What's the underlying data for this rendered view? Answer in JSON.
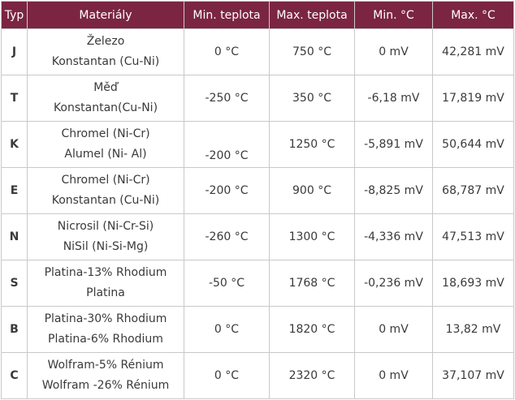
{
  "table": {
    "headers": [
      "Typ",
      "Materiály",
      "Min. teplota",
      "Max. teplota",
      "Min. °C",
      "Max. °C"
    ],
    "rows": [
      {
        "typ": "J",
        "material": [
          "Železo",
          "Konstantan (Cu-Ni)"
        ],
        "min_teplota": "0 °C",
        "max_teplota": "750 °C",
        "min_c": "0 mV",
        "max_c": "42,281 mV"
      },
      {
        "typ": "T",
        "material": [
          "Měď",
          "Konstantan(Cu-Ni)"
        ],
        "min_teplota": "-250 °C",
        "max_teplota": "350 °C",
        "min_c": "-6,18 mV",
        "max_c": "17,819 mV"
      },
      {
        "typ": "K",
        "material": [
          "Chromel (Ni-Cr)",
          "Alumel (Ni- Al)"
        ],
        "min_teplota": "-200 °C",
        "max_teplota": "1250 °C",
        "min_c": "-5,891 mV",
        "max_c": "50,644 mV"
      },
      {
        "typ": "E",
        "material": [
          "Chromel (Ni-Cr)",
          "Konstantan (Cu-Ni)"
        ],
        "min_teplota": "-200 °C",
        "max_teplota": "900 °C",
        "min_c": "-8,825 mV",
        "max_c": "68,787 mV"
      },
      {
        "typ": "N",
        "material": [
          "Nicrosil (Ni-Cr-Si)",
          "NiSil (Ni-Si-Mg)"
        ],
        "min_teplota": "-260 °C",
        "max_teplota": "1300 °C",
        "min_c": "-4,336 mV",
        "max_c": "47,513 mV"
      },
      {
        "typ": "S",
        "material": [
          "Platina-13% Rhodium",
          "Platina"
        ],
        "min_teplota": "-50 °C",
        "max_teplota": "1768 °C",
        "min_c": "-0,236 mV",
        "max_c": "18,693 mV"
      },
      {
        "typ": "B",
        "material": [
          "Platina-30% Rhodium",
          "Platina-6% Rhodium"
        ],
        "min_teplota": "0 °C",
        "max_teplota": "1820 °C",
        "min_c": "0 mV",
        "max_c": "13,82 mV"
      },
      {
        "typ": "C",
        "material": [
          "Wolfram-5% Rénium",
          "Wolfram -26% Rénium"
        ],
        "min_teplota": "0 °C",
        "max_teplota": "2320 °C",
        "min_c": "0 mV",
        "max_c": "37,107 mV"
      }
    ]
  },
  "colors": {
    "header_bg": "#7b2543",
    "header_text": "#ffffff",
    "border": "#c9c9c9",
    "text": "#3a3a3a"
  }
}
